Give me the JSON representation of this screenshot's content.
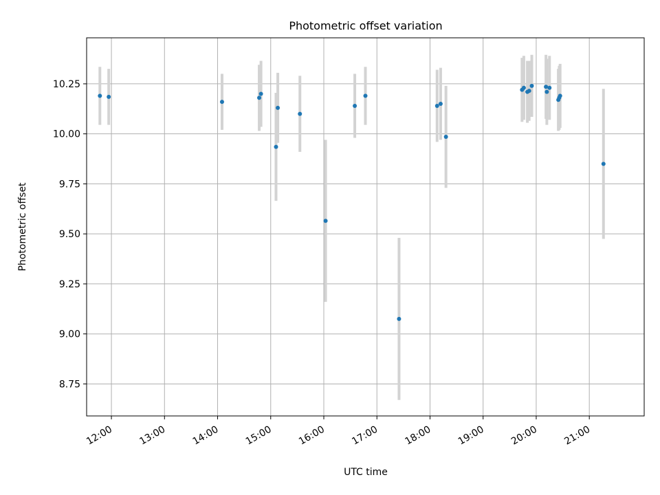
{
  "chart_data": {
    "type": "scatter",
    "title": "Photometric offset variation",
    "xlabel": "UTC time",
    "ylabel": "Photometric offset",
    "x_ticks": [
      "12:00",
      "13:00",
      "14:00",
      "15:00",
      "16:00",
      "17:00",
      "18:00",
      "19:00",
      "20:00",
      "21:00"
    ],
    "y_ticks": [
      "8.75",
      "9.00",
      "9.25",
      "9.50",
      "9.75",
      "10.00",
      "10.25"
    ],
    "xlim": [
      "11:32",
      "22:02"
    ],
    "ylim": [
      8.59,
      10.48
    ],
    "grid": true,
    "point_color": "#1f77b4",
    "errorbar_color": "#d3d3d3",
    "points": [
      {
        "x": "11:47",
        "y": 10.19,
        "err": 0.145
      },
      {
        "x": "11:57",
        "y": 10.185,
        "err": 0.14
      },
      {
        "x": "14:05",
        "y": 10.16,
        "err": 0.14
      },
      {
        "x": "14:47",
        "y": 10.18,
        "err": 0.165
      },
      {
        "x": "14:49",
        "y": 10.2,
        "err": 0.165
      },
      {
        "x": "15:06",
        "y": 9.935,
        "err": 0.27
      },
      {
        "x": "15:08",
        "y": 10.13,
        "err": 0.175
      },
      {
        "x": "15:33",
        "y": 10.1,
        "err": 0.19
      },
      {
        "x": "16:02",
        "y": 9.565,
        "err": 0.405
      },
      {
        "x": "16:35",
        "y": 10.14,
        "err": 0.16
      },
      {
        "x": "16:47",
        "y": 10.19,
        "err": 0.145
      },
      {
        "x": "17:25",
        "y": 9.075,
        "err": 0.405
      },
      {
        "x": "18:08",
        "y": 10.14,
        "err": 0.18
      },
      {
        "x": "18:12",
        "y": 10.15,
        "err": 0.18
      },
      {
        "x": "18:18",
        "y": 9.985,
        "err": 0.255
      },
      {
        "x": "19:44",
        "y": 10.22,
        "err": 0.16
      },
      {
        "x": "19:46",
        "y": 10.23,
        "err": 0.16
      },
      {
        "x": "19:50",
        "y": 10.21,
        "err": 0.155
      },
      {
        "x": "19:52",
        "y": 10.215,
        "err": 0.15
      },
      {
        "x": "19:55",
        "y": 10.24,
        "err": 0.155
      },
      {
        "x": "20:11",
        "y": 10.235,
        "err": 0.16
      },
      {
        "x": "20:12",
        "y": 10.21,
        "err": 0.165
      },
      {
        "x": "20:15",
        "y": 10.23,
        "err": 0.16
      },
      {
        "x": "20:25",
        "y": 10.17,
        "err": 0.155
      },
      {
        "x": "20:26",
        "y": 10.18,
        "err": 0.16
      },
      {
        "x": "20:27",
        "y": 10.19,
        "err": 0.16
      },
      {
        "x": "21:16",
        "y": 9.85,
        "err": 0.375
      }
    ]
  }
}
